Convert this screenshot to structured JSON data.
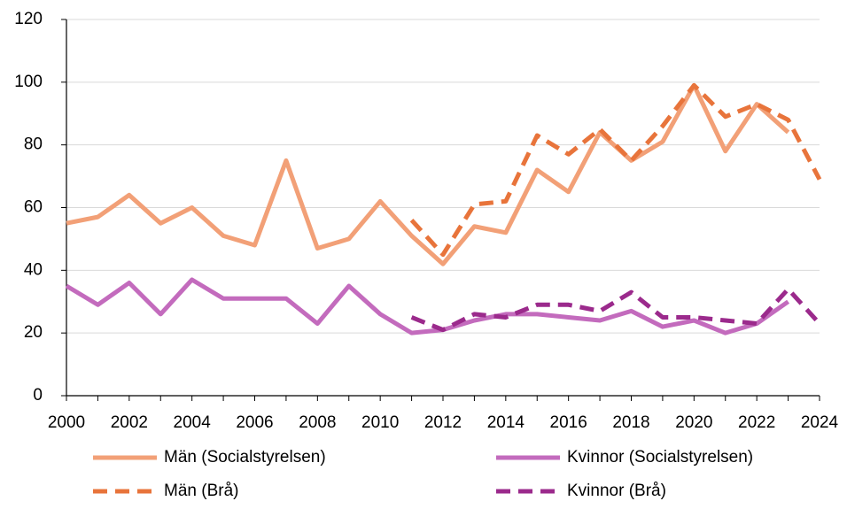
{
  "chart_data": {
    "type": "line",
    "x": [
      2000,
      2001,
      2002,
      2003,
      2004,
      2005,
      2006,
      2007,
      2008,
      2009,
      2010,
      2011,
      2012,
      2013,
      2014,
      2015,
      2016,
      2017,
      2018,
      2019,
      2020,
      2021,
      2022,
      2023,
      2024
    ],
    "series": [
      {
        "name": "Män (Socialstyrelsen)",
        "color": "#f2a077",
        "style": "solid",
        "values": [
          55,
          57,
          64,
          55,
          60,
          51,
          48,
          75,
          47,
          50,
          62,
          51,
          42,
          54,
          52,
          72,
          65,
          84,
          75,
          81,
          99,
          78,
          93,
          84,
          null
        ]
      },
      {
        "name": "Kvinnor (Socialstyrelsen)",
        "color": "#c36bbd",
        "style": "solid",
        "values": [
          35,
          29,
          36,
          26,
          37,
          31,
          31,
          31,
          23,
          35,
          26,
          20,
          21,
          24,
          26,
          26,
          25,
          24,
          27,
          22,
          24,
          20,
          23,
          30,
          null
        ]
      },
      {
        "name": "Män (Brå)",
        "color": "#e8743b",
        "style": "dashed",
        "values": [
          null,
          null,
          null,
          null,
          null,
          null,
          null,
          null,
          null,
          null,
          null,
          56,
          45,
          61,
          62,
          83,
          77,
          85,
          75,
          86,
          99,
          89,
          93,
          88,
          69
        ]
      },
      {
        "name": "Kvinnor (Brå)",
        "color": "#9b2a8c",
        "style": "dashed",
        "values": [
          null,
          null,
          null,
          null,
          null,
          null,
          null,
          null,
          null,
          null,
          null,
          25,
          21,
          26,
          25,
          29,
          29,
          27,
          33,
          25,
          25,
          24,
          23,
          34,
          23
        ]
      }
    ],
    "xlim": [
      2000,
      2024
    ],
    "xticks": [
      2000,
      2002,
      2004,
      2006,
      2008,
      2010,
      2012,
      2014,
      2016,
      2018,
      2020,
      2022,
      2024
    ],
    "ylim": [
      0,
      120
    ],
    "yticks": [
      0,
      20,
      40,
      60,
      80,
      100,
      120
    ],
    "grid": true
  }
}
